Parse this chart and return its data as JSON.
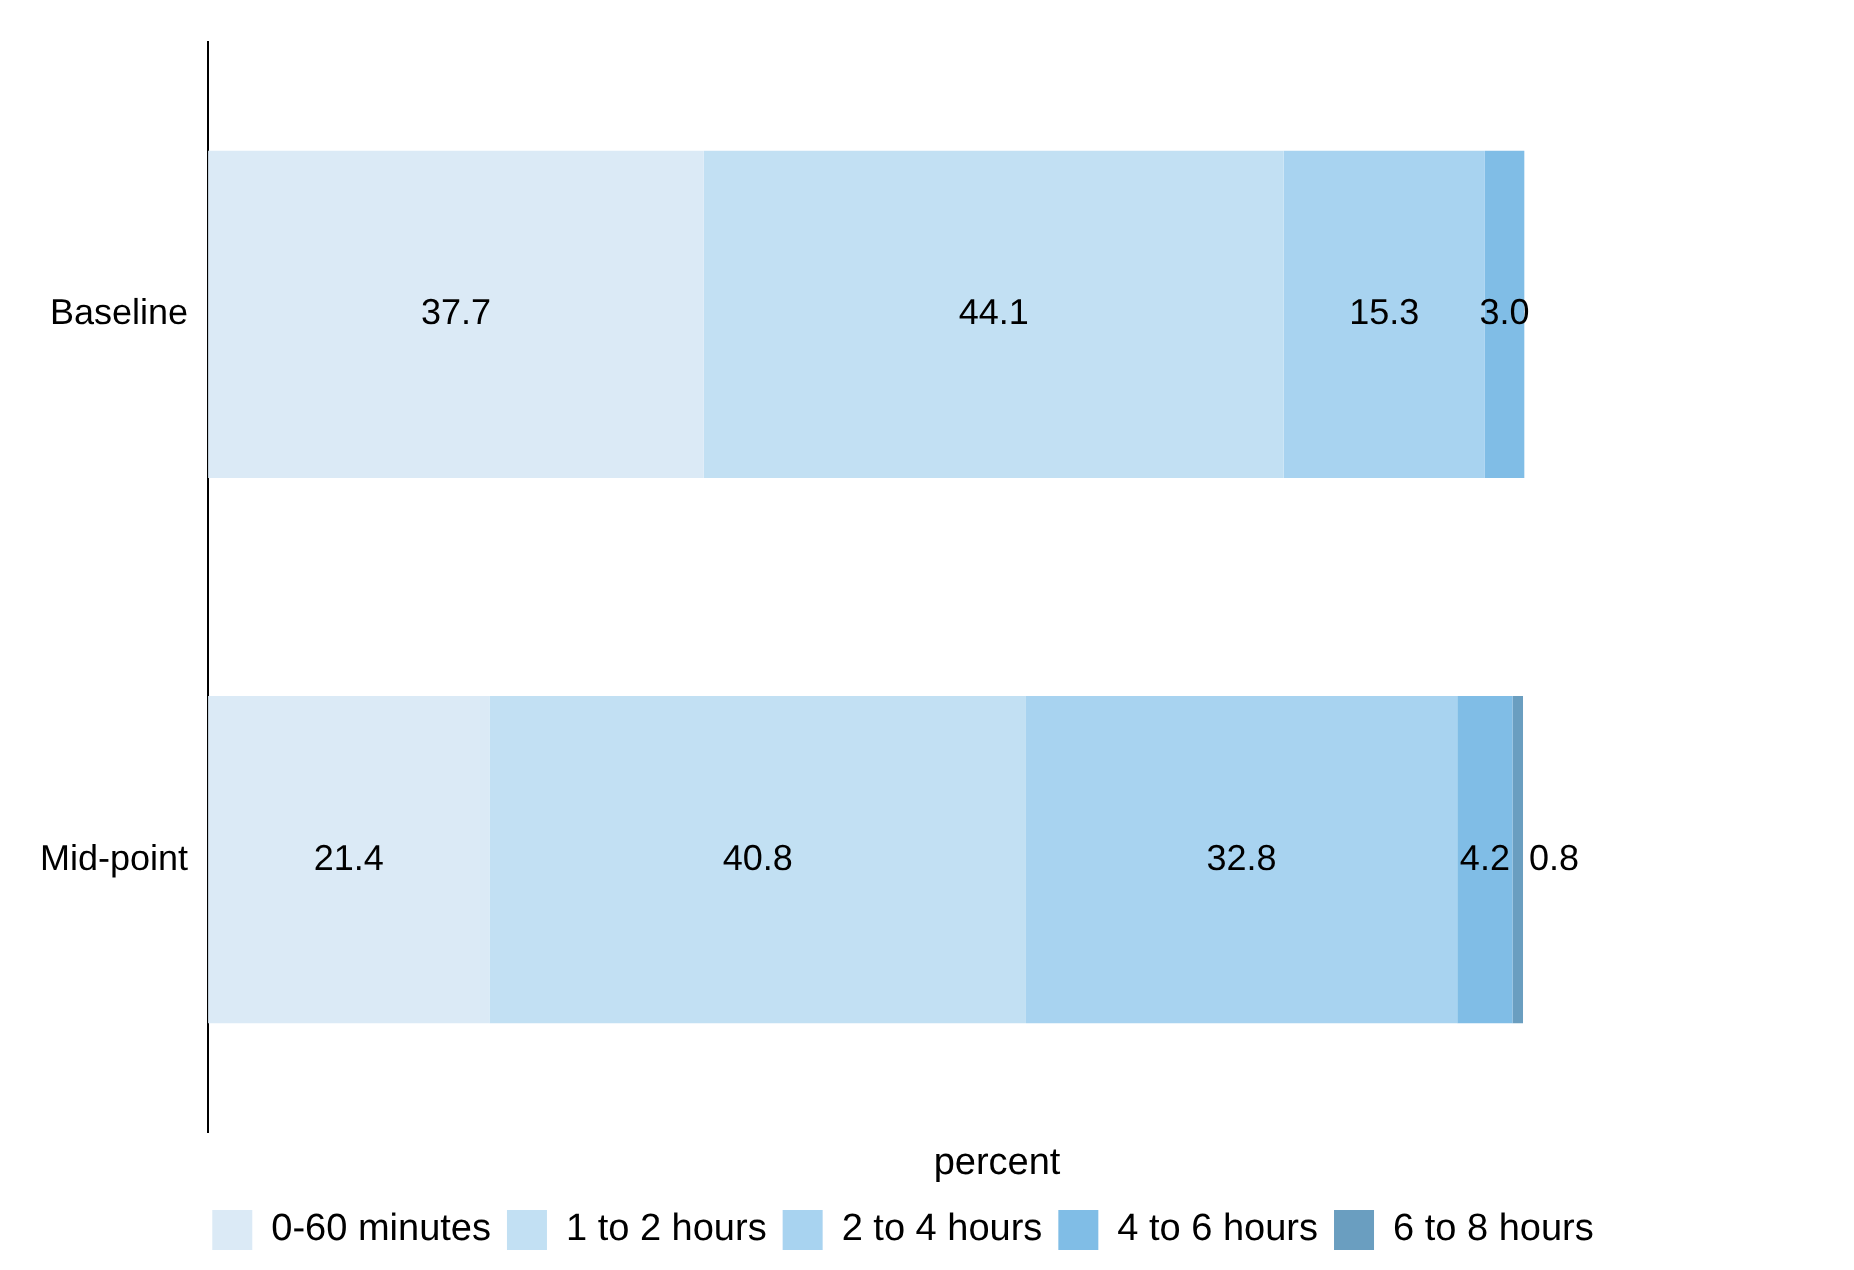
{
  "chart_data": {
    "type": "bar",
    "orientation": "horizontal",
    "stacked": true,
    "xlabel": "percent",
    "categories": [
      "Baseline",
      "Mid-point"
    ],
    "tick_labels": "y",
    "grid": false,
    "legend": "bottom",
    "series": [
      {
        "name": "0-60 minutes",
        "color": "#dbeaf6",
        "values": [
          37.7,
          21.4
        ],
        "value_labels": [
          "37.7",
          "21.4"
        ]
      },
      {
        "name": "1 to 2 hours",
        "color": "#c2e0f3",
        "values": [
          44.1,
          40.8
        ],
        "value_labels": [
          "44.1",
          "40.8"
        ]
      },
      {
        "name": "2 to 4 hours",
        "color": "#a8d3f0",
        "values": [
          15.3,
          32.8
        ],
        "value_labels": [
          "15.3",
          "32.8"
        ]
      },
      {
        "name": "4 to 6 hours",
        "color": "#80bde6",
        "values": [
          3.0,
          4.2
        ],
        "value_labels": [
          "3.0",
          "4.2"
        ]
      },
      {
        "name": "6 to 8 hours",
        "color": "#6a9ec0",
        "values": [
          null,
          0.8
        ],
        "value_labels": [
          null,
          "0.8"
        ]
      }
    ]
  }
}
